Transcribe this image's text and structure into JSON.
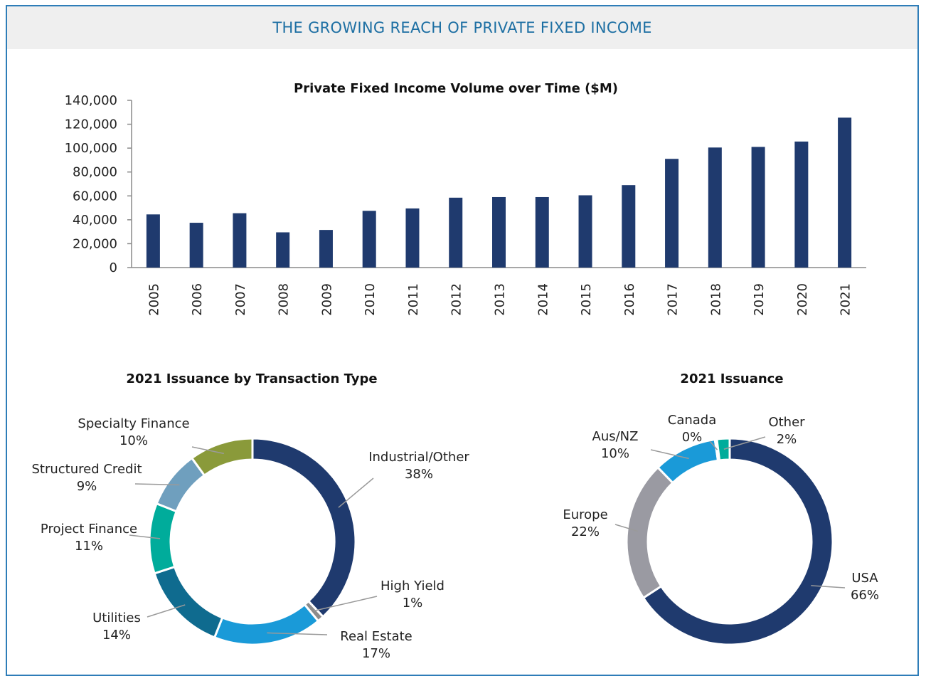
{
  "banner": {
    "title": "THE GROWING REACH OF PRIVATE FIXED INCOME"
  },
  "colors": {
    "bar": "#1f3a6e",
    "axis": "#8a8a8a",
    "border": "#2e7db8",
    "banner_bg": "#efefef",
    "banner_text": "#1d6fa3"
  },
  "chart_data": [
    {
      "type": "bar",
      "title": "Private Fixed Income Volume over Time ($M)",
      "categories": [
        "2005",
        "2006",
        "2007",
        "2008",
        "2009",
        "2010",
        "2011",
        "2012",
        "2013",
        "2014",
        "2015",
        "2016",
        "2017",
        "2018",
        "2019",
        "2020",
        "2021"
      ],
      "values": [
        44500,
        37500,
        45500,
        29500,
        31500,
        47500,
        49500,
        58500,
        59000,
        59000,
        60500,
        69000,
        91000,
        100500,
        101000,
        105500,
        125500
      ],
      "ylim": [
        0,
        140000
      ],
      "yticks": [
        0,
        20000,
        40000,
        60000,
        80000,
        100000,
        120000,
        140000
      ],
      "ytick_labels": [
        "0",
        "20,000",
        "40,000",
        "60,000",
        "80,000",
        "100,000",
        "120,000",
        "140,000"
      ],
      "xlabel": "",
      "ylabel": ""
    },
    {
      "type": "pie",
      "title": "2021 Issuance by Transaction Type",
      "slices": [
        {
          "label": "Industrial/Other",
          "value": 38,
          "pct": "38%",
          "color": "#1f3a6e"
        },
        {
          "label": "High Yield",
          "value": 1,
          "pct": "1%",
          "color": "#8c8c8c"
        },
        {
          "label": "Real Estate",
          "value": 17,
          "pct": "17%",
          "color": "#1a9ad8"
        },
        {
          "label": "Utilities",
          "value": 14,
          "pct": "14%",
          "color": "#0f6b8f"
        },
        {
          "label": "Project Finance",
          "value": 11,
          "pct": "11%",
          "color": "#00ac9b"
        },
        {
          "label": "Structured Credit",
          "value": 9,
          "pct": "9%",
          "color": "#6f9fbe"
        },
        {
          "label": "Specialty Finance",
          "value": 10,
          "pct": "10%",
          "color": "#8a9a3a"
        }
      ]
    },
    {
      "type": "pie",
      "title": "2021 Issuance",
      "slices": [
        {
          "label": "USA",
          "value": 66,
          "pct": "66%",
          "color": "#1f3a6e"
        },
        {
          "label": "Europe",
          "value": 22,
          "pct": "22%",
          "color": "#9a9aa2"
        },
        {
          "label": "Aus/NZ",
          "value": 10,
          "pct": "10%",
          "color": "#1a9ad8"
        },
        {
          "label": "Canada",
          "value": 0.3,
          "pct": "0%",
          "color": "#7aa0b8"
        },
        {
          "label": "Other",
          "value": 2,
          "pct": "2%",
          "color": "#00ac9b"
        }
      ]
    }
  ]
}
